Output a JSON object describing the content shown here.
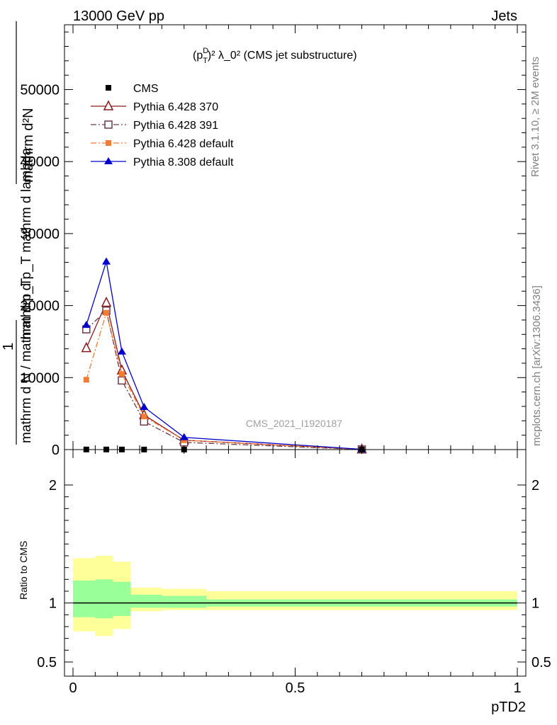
{
  "header": {
    "left_label": "13000 GeV pp",
    "right_label": "Jets"
  },
  "side_labels": {
    "rivet": "Rivet 3.1.10, ≥ 2M events",
    "mcplots": "mcplots.cern.ch [arXiv:1306.3436]"
  },
  "chart_data": [
    {
      "type": "line",
      "title_prefix": "(p",
      "title_sub": "T",
      "title_sup": "D",
      "title_suffix": ")² λ_0² (CMS jet substructure)",
      "ylabel_line1": "mathrm d²N",
      "ylabel_line2": "mathrm d p_T mathrm d lambda",
      "ylabel_one": "1",
      "ylabel_denominator": "mathrm d N / mathrm d p_T",
      "watermark": "CMS_2021_I1920187",
      "xlim": [
        0,
        1
      ],
      "ylim": [
        0,
        59000
      ],
      "y_ticks": [
        0,
        10000,
        20000,
        30000,
        40000,
        50000
      ],
      "y_tick_labels": [
        "0",
        "10000",
        "20000",
        "30000",
        "40000",
        "50000"
      ],
      "legend_position": "top-left",
      "series": [
        {
          "name": "CMS",
          "color": "#000000",
          "marker": "square-filled",
          "dash": "none",
          "x": [
            0.03,
            0.075,
            0.11,
            0.16,
            0.25,
            0.65
          ],
          "y": [
            15,
            15,
            12,
            8,
            5,
            1
          ]
        },
        {
          "name": "Pythia 6.428 370",
          "color": "#8b1a1a",
          "marker": "triangle-open",
          "dash": "solid",
          "x": [
            0.03,
            0.075,
            0.11,
            0.16,
            0.25,
            0.65
          ],
          "y": [
            14100,
            20400,
            11000,
            4800,
            1300,
            30
          ]
        },
        {
          "name": "Pythia 6.428 391",
          "color": "#6b3a4a",
          "marker": "square-open",
          "dash": "dashdot",
          "x": [
            0.03,
            0.075,
            0.11,
            0.16,
            0.25,
            0.65
          ],
          "y": [
            16700,
            19300,
            9600,
            3900,
            1000,
            20
          ]
        },
        {
          "name": "Pythia 6.428 default",
          "color": "#f47c30",
          "marker": "square-filled",
          "dash": "dashdot",
          "x": [
            0.03,
            0.075,
            0.11,
            0.16,
            0.25,
            0.65
          ],
          "y": [
            9700,
            19000,
            10500,
            4600,
            1300,
            30
          ]
        },
        {
          "name": "Pythia 8.308 default",
          "color": "#0000cc",
          "marker": "triangle-filled",
          "dash": "solid",
          "x": [
            0.03,
            0.075,
            0.11,
            0.16,
            0.25,
            0.65
          ],
          "y": [
            17300,
            26100,
            13600,
            5900,
            1700,
            40
          ]
        }
      ]
    },
    {
      "type": "area",
      "ylabel": "Ratio to CMS",
      "xlabel": "pTD2",
      "xlim": [
        0,
        1
      ],
      "ylim": [
        0.38,
        2.3
      ],
      "x_ticks": [
        0,
        0.5,
        1
      ],
      "x_tick_labels": [
        "0",
        "0.5",
        "1"
      ],
      "y_ticks": [
        0.5,
        1,
        2
      ],
      "y_tick_labels": [
        "0.5",
        "1",
        "2"
      ],
      "reference_line": 1,
      "bands": [
        {
          "name": "stat",
          "color": "#99ff99",
          "segments": [
            {
              "x": [
                0,
                0.05
              ],
              "y": [
                0.88,
                1.19
              ]
            },
            {
              "x": [
                0.05,
                0.09
              ],
              "y": [
                0.87,
                1.2
              ]
            },
            {
              "x": [
                0.09,
                0.13
              ],
              "y": [
                0.89,
                1.18
              ]
            },
            {
              "x": [
                0.13,
                0.2
              ],
              "y": [
                0.96,
                1.07
              ]
            },
            {
              "x": [
                0.2,
                0.3
              ],
              "y": [
                0.96,
                1.06
              ]
            },
            {
              "x": [
                0.3,
                1.0
              ],
              "y": [
                0.97,
                1.03
              ]
            }
          ]
        },
        {
          "name": "syst",
          "color": "#ffff99",
          "segments": [
            {
              "x": [
                0,
                0.05
              ],
              "y": [
                0.76,
                1.38
              ]
            },
            {
              "x": [
                0.05,
                0.09
              ],
              "y": [
                0.72,
                1.4
              ]
            },
            {
              "x": [
                0.09,
                0.13
              ],
              "y": [
                0.78,
                1.35
              ]
            },
            {
              "x": [
                0.13,
                0.2
              ],
              "y": [
                0.93,
                1.13
              ]
            },
            {
              "x": [
                0.2,
                0.3
              ],
              "y": [
                0.94,
                1.12
              ]
            },
            {
              "x": [
                0.3,
                1.0
              ],
              "y": [
                0.94,
                1.1
              ]
            }
          ]
        }
      ]
    }
  ]
}
